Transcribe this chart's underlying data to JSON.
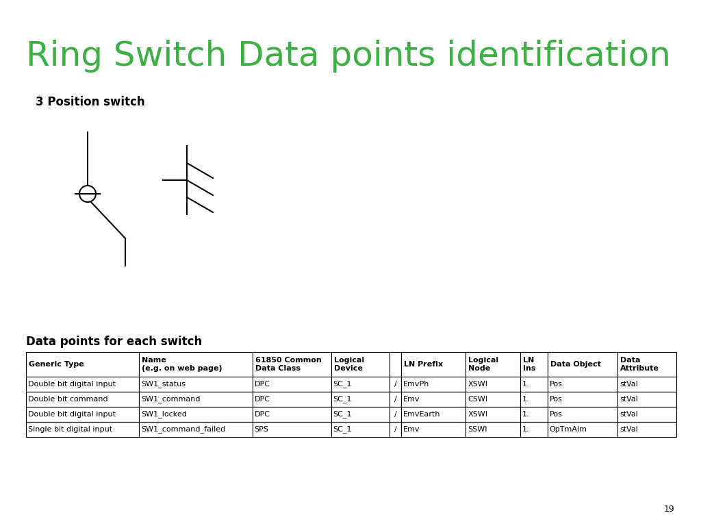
{
  "title": "Ring Switch Data points identification",
  "title_color": "#3cb043",
  "subtitle": "3 Position switch",
  "subtitle_fontsize": 12,
  "section_label": "Data points for each switch",
  "table_headers": [
    "Generic Type",
    "Name\n(e.g. on web page)",
    "61850 Common\nData Class",
    "",
    "Logical\nDevice",
    "/",
    "LN Prefix",
    "Logical\nNode",
    "LN\nIns",
    "Data Object",
    "Data\nAttribute"
  ],
  "table_data": [
    [
      "Double bit digital input",
      "SW1_status",
      "DPC",
      "",
      "SC_1",
      "/",
      "EmvPh",
      "XSWI",
      "1.",
      "Pos",
      "stVal"
    ],
    [
      "Double bit command",
      "SW1_command",
      "DPC",
      "",
      "SC_1",
      "/",
      "Emv",
      "CSWI",
      "1.",
      "Pos",
      "stVal"
    ],
    [
      "Double bit digital input",
      "SW1_locked",
      "DPC",
      "",
      "SC_1",
      "/",
      "EmvEarth",
      "XSWI",
      "1.",
      "Pos",
      "stVal"
    ],
    [
      "Single bit digital input",
      "SW1_command_failed",
      "SPS",
      "",
      "SC_1",
      "/",
      "Emv",
      "SSWI",
      "1.",
      "OpTmAlm",
      "stVal"
    ]
  ],
  "page_number": "19",
  "bg_color": "#ffffff",
  "text_color": "#000000"
}
